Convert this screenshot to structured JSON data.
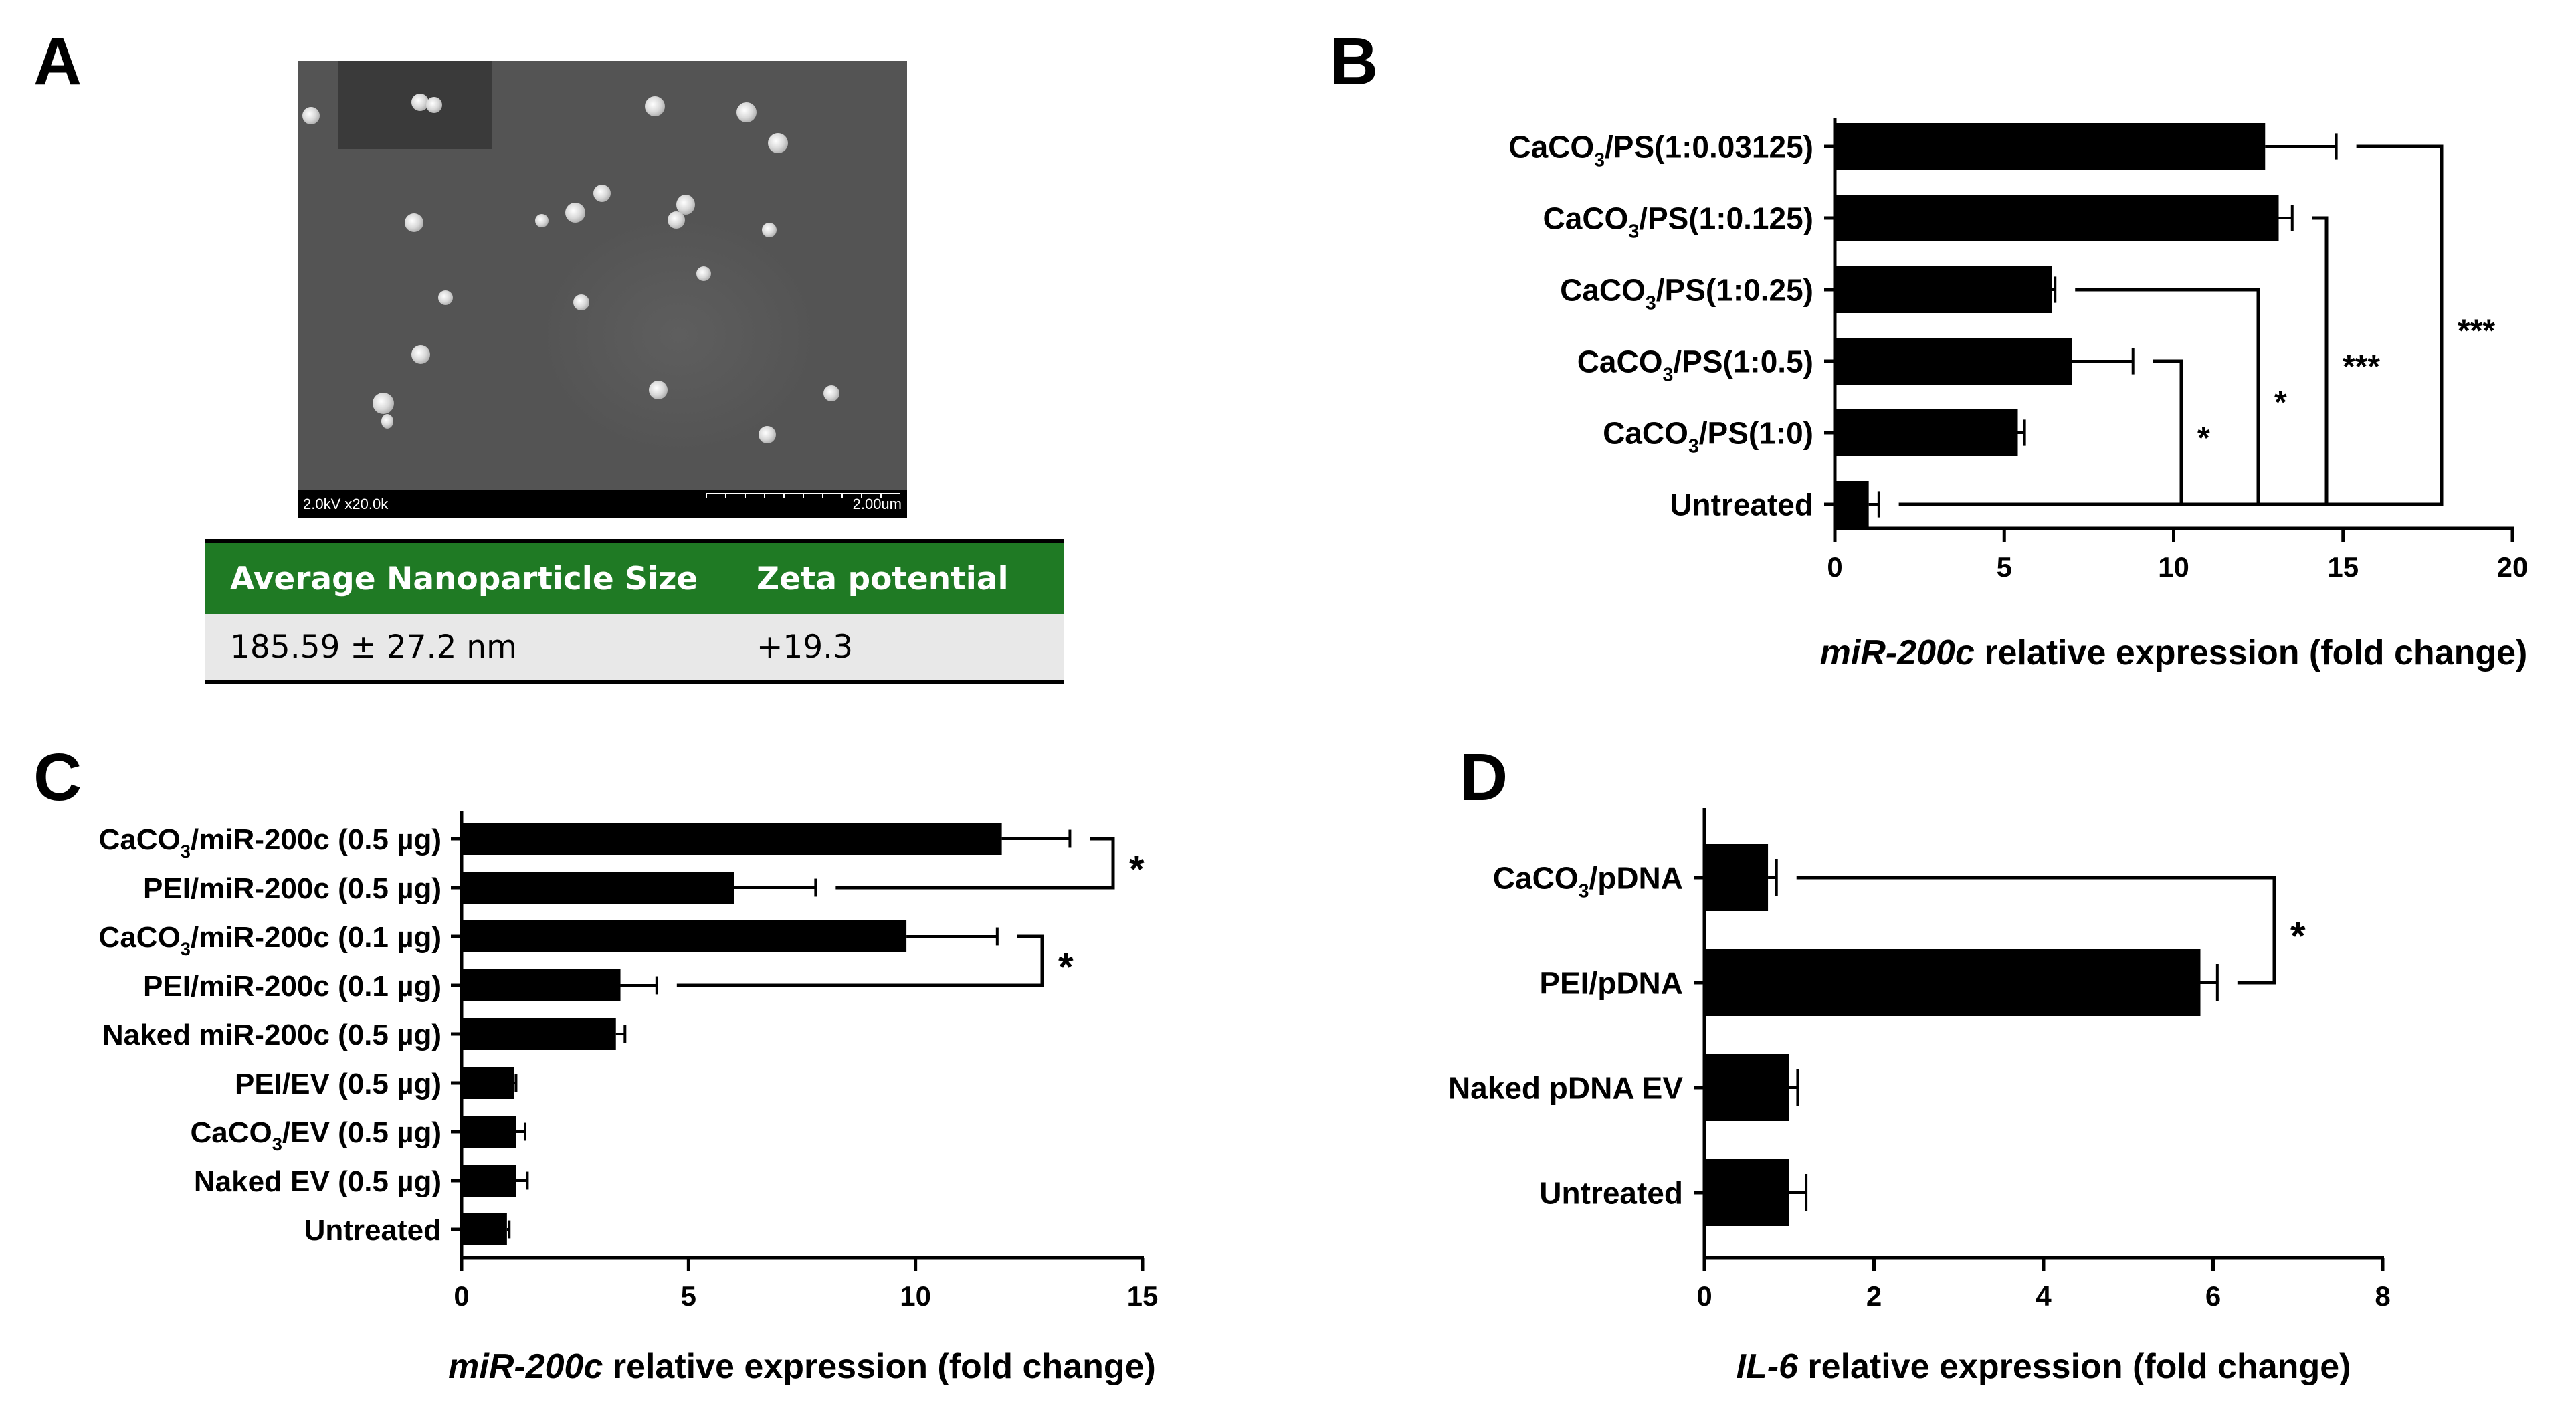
{
  "panels": {
    "a": {
      "letter": "A",
      "sem": {
        "info_left": "2.0kV x20.0k",
        "info_right": "2.00um"
      },
      "table": {
        "headers": [
          "Average Nanoparticle Size",
          "Zeta potential"
        ],
        "rows": [
          [
            "185.59 ± 27.2 nm",
            "+19.3"
          ]
        ]
      }
    },
    "b": {
      "letter": "B"
    },
    "c": {
      "letter": "C"
    },
    "d": {
      "letter": "D"
    }
  },
  "chart_data": [
    {
      "panel": "B",
      "type": "bar",
      "orientation": "horizontal",
      "categories": [
        [
          "CaCO",
          "3",
          "/PS(1:0.03125)"
        ],
        [
          "CaCO",
          "3",
          "/PS(1:0.125)"
        ],
        [
          "CaCO",
          "3",
          "/PS(1:0.25)"
        ],
        [
          "CaCO",
          "3",
          "/PS(1:0.5)"
        ],
        [
          "CaCO",
          "3",
          "/PS(1:0)"
        ],
        [
          "Untreated"
        ]
      ],
      "values": [
        12.7,
        13.1,
        6.4,
        7.0,
        5.4,
        1.0
      ],
      "errors": [
        2.1,
        0.4,
        0.1,
        1.8,
        0.2,
        0.3
      ],
      "xlabel": {
        "italic": "miR-200c",
        "rest": " relative expression (fold change)"
      },
      "xlim": [
        0,
        20
      ],
      "ticks": [
        0,
        5,
        10,
        15,
        20
      ],
      "brackets": [
        {
          "from": 3,
          "to": 5,
          "label": "*"
        },
        {
          "from": 2,
          "to": 5,
          "label": "*"
        },
        {
          "from": 1,
          "to": 5,
          "label": "***"
        },
        {
          "from": 0,
          "to": 5,
          "label": "***"
        }
      ]
    },
    {
      "panel": "C",
      "type": "bar",
      "orientation": "horizontal",
      "categories": [
        [
          "CaCO",
          "3",
          "/miR-200c (0.5 µg)"
        ],
        [
          "PEI/miR-200c (0.5 µg)"
        ],
        [
          "CaCO",
          "3",
          "/miR-200c (0.1 µg)"
        ],
        [
          "PEI/miR-200c (0.1 µg)"
        ],
        [
          "Naked miR-200c (0.5 µg)"
        ],
        [
          "PEI/EV (0.5 µg)"
        ],
        [
          "CaCO",
          "3",
          "/EV (0.5 µg)"
        ],
        [
          "Naked EV (0.5 µg)"
        ],
        [
          "Untreated"
        ]
      ],
      "values": [
        11.9,
        6.0,
        9.8,
        3.5,
        3.4,
        1.15,
        1.2,
        1.2,
        1.0
      ],
      "errors": [
        1.5,
        1.8,
        2.0,
        0.8,
        0.2,
        0.05,
        0.2,
        0.25,
        0.05
      ],
      "xlabel": {
        "italic": "miR-200c",
        "rest": " relative expression (fold change)"
      },
      "xlim": [
        0,
        15
      ],
      "ticks": [
        0,
        5,
        10,
        15
      ],
      "brackets": [
        {
          "from": 0,
          "to": 1,
          "label": "*"
        },
        {
          "from": 2,
          "to": 3,
          "label": "*"
        }
      ]
    },
    {
      "panel": "D",
      "type": "bar",
      "orientation": "horizontal",
      "categories": [
        [
          "CaCO",
          "3",
          "/pDNA"
        ],
        [
          "PEI/pDNA"
        ],
        [
          "Naked pDNA EV"
        ],
        [
          "Untreated"
        ]
      ],
      "values": [
        0.75,
        5.85,
        1.0,
        1.0
      ],
      "errors": [
        0.1,
        0.2,
        0.1,
        0.2
      ],
      "xlabel": {
        "italic": "IL-6",
        "rest": " relative expression (fold change)"
      },
      "xlim": [
        0,
        8
      ],
      "ticks": [
        0,
        2,
        4,
        6,
        8
      ],
      "brackets": [
        {
          "from": 0,
          "to": 1,
          "label": "*"
        }
      ]
    }
  ]
}
